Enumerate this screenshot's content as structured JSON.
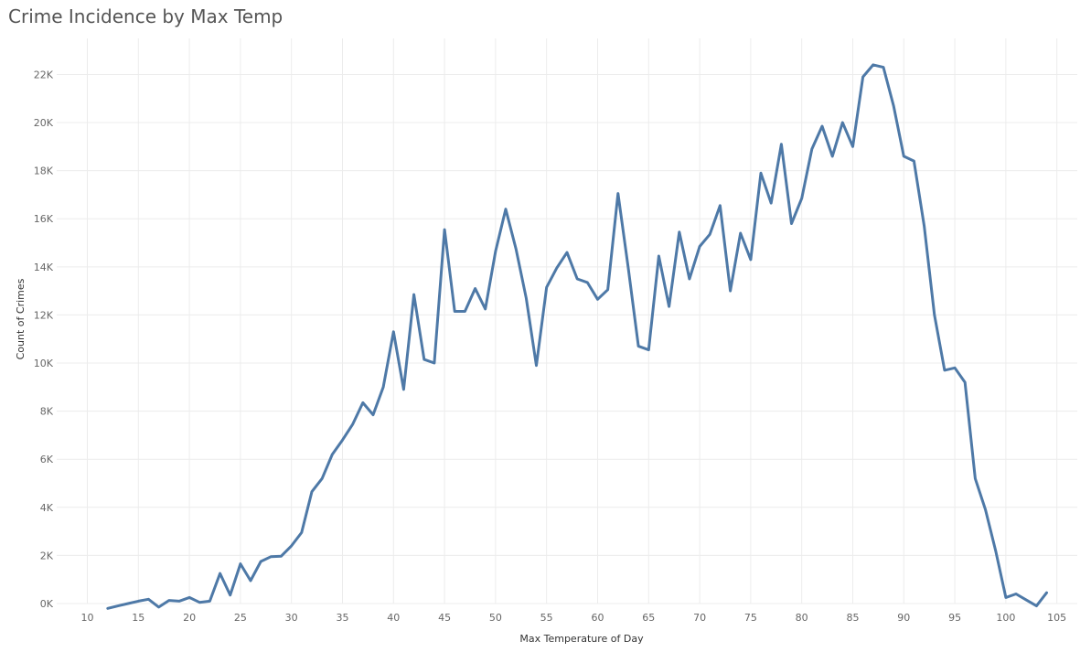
{
  "chart_data": {
    "type": "line",
    "title": "Crime Incidence by Max Temp",
    "xlabel": "Max Temperature of Day",
    "ylabel": "Count of Crimes",
    "xlim": [
      7,
      107
    ],
    "ylim": [
      0,
      23500
    ],
    "x_ticks": [
      10,
      15,
      20,
      25,
      30,
      35,
      40,
      45,
      50,
      55,
      60,
      65,
      70,
      75,
      80,
      85,
      90,
      95,
      100,
      105
    ],
    "y_ticks": [
      0,
      2000,
      4000,
      6000,
      8000,
      10000,
      12000,
      14000,
      16000,
      18000,
      20000,
      22000
    ],
    "y_tick_labels": [
      "0K",
      "2K",
      "4K",
      "6K",
      "8K",
      "10K",
      "12K",
      "14K",
      "16K",
      "18K",
      "20K",
      "22K"
    ],
    "grid": true,
    "series": [
      {
        "color": "#4e79a7",
        "x": [
          12,
          13,
          14,
          15,
          16,
          17,
          18,
          19,
          20,
          21,
          22,
          23,
          24,
          25,
          26,
          27,
          28,
          29,
          30,
          31,
          32,
          33,
          34,
          35,
          36,
          37,
          38,
          39,
          40,
          41,
          42,
          43,
          44,
          45,
          46,
          47,
          48,
          49,
          50,
          51,
          52,
          53,
          54,
          55,
          56,
          57,
          58,
          59,
          60,
          61,
          62,
          63,
          64,
          65,
          66,
          67,
          68,
          69,
          70,
          71,
          72,
          73,
          74,
          75,
          76,
          77,
          78,
          79,
          80,
          81,
          82,
          83,
          84,
          85,
          86,
          87,
          88,
          89,
          90,
          91,
          92,
          93,
          94,
          95,
          96,
          97,
          98,
          99,
          100,
          101,
          102,
          103,
          104
        ],
        "values": [
          -200,
          -100,
          0,
          100,
          180,
          -150,
          130,
          100,
          250,
          50,
          100,
          1250,
          350,
          1650,
          950,
          1750,
          1950,
          1970,
          2400,
          2950,
          4650,
          5200,
          6200,
          6800,
          7450,
          8350,
          7850,
          9000,
          11300,
          8900,
          12850,
          10150,
          10000,
          15550,
          12150,
          12150,
          13100,
          12250,
          14650,
          16400,
          14750,
          12700,
          9900,
          13150,
          13950,
          14600,
          13500,
          13350,
          12650,
          13050,
          17050,
          13950,
          10700,
          10550,
          14450,
          12350,
          15450,
          13500,
          14850,
          15350,
          16550,
          13000,
          15400,
          14300,
          17900,
          16650,
          19100,
          15800,
          16850,
          18900,
          19850,
          18600,
          20000,
          19000,
          21900,
          22400,
          22300,
          20700,
          18600,
          18400,
          15700,
          12000,
          9700,
          9800,
          9200,
          5200,
          3900,
          2200,
          250,
          400,
          150,
          -100,
          450
        ]
      }
    ]
  }
}
